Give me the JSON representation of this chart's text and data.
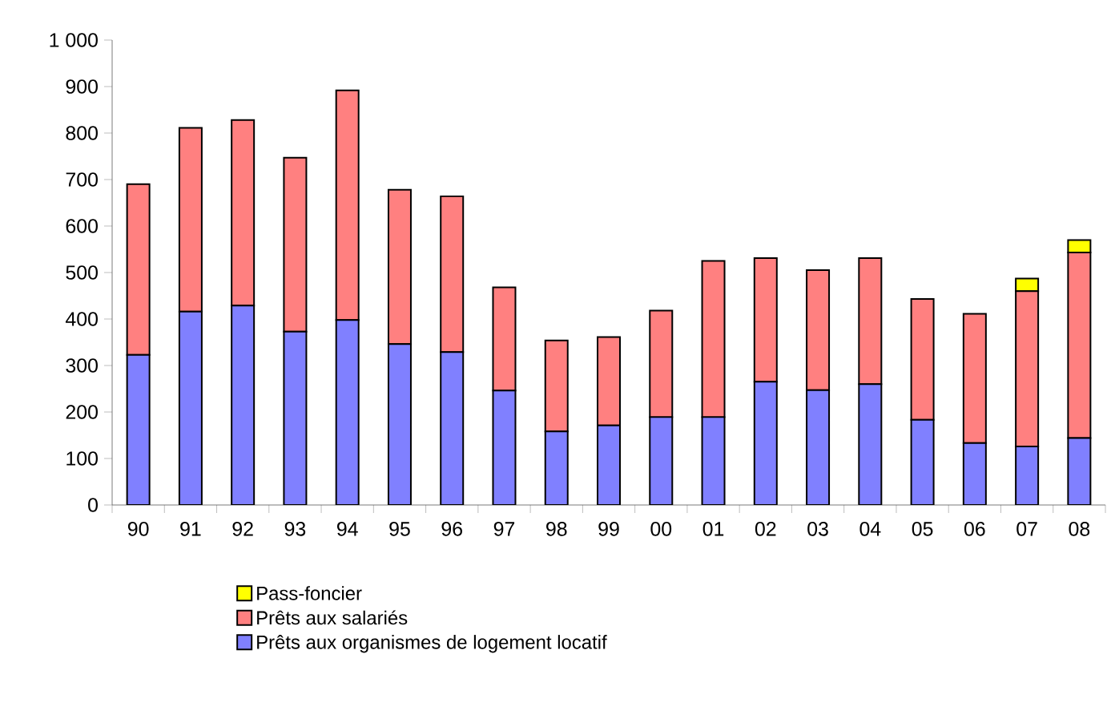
{
  "chart_data": {
    "type": "bar",
    "stacked": true,
    "categories": [
      "90",
      "91",
      "92",
      "93",
      "94",
      "95",
      "96",
      "97",
      "98",
      "99",
      "00",
      "01",
      "02",
      "03",
      "04",
      "05",
      "06",
      "07",
      "08"
    ],
    "series": [
      {
        "name": "Prêts aux organismes de logement locatif",
        "color": "#8080ff",
        "values": [
          323,
          416,
          429,
          373,
          398,
          346,
          329,
          246,
          158,
          171,
          189,
          189,
          265,
          247,
          260,
          183,
          133,
          126,
          144
        ]
      },
      {
        "name": "Prêts aux salariés",
        "color": "#ff8080",
        "values": [
          367,
          395,
          399,
          374,
          494,
          332,
          335,
          222,
          196,
          190,
          229,
          336,
          266,
          258,
          271,
          260,
          278,
          334,
          399
        ]
      },
      {
        "name": "Pass-foncier",
        "color": "#ffff00",
        "values": [
          null,
          null,
          null,
          null,
          null,
          null,
          null,
          null,
          null,
          null,
          null,
          null,
          null,
          null,
          null,
          null,
          null,
          27,
          27
        ]
      }
    ],
    "ylim": [
      0,
      1000
    ],
    "yticks": [
      0,
      100,
      200,
      300,
      400,
      500,
      600,
      700,
      800,
      900,
      {
        "value": 1000,
        "label": "1 000"
      }
    ],
    "grid": false,
    "legend": "bottom"
  }
}
